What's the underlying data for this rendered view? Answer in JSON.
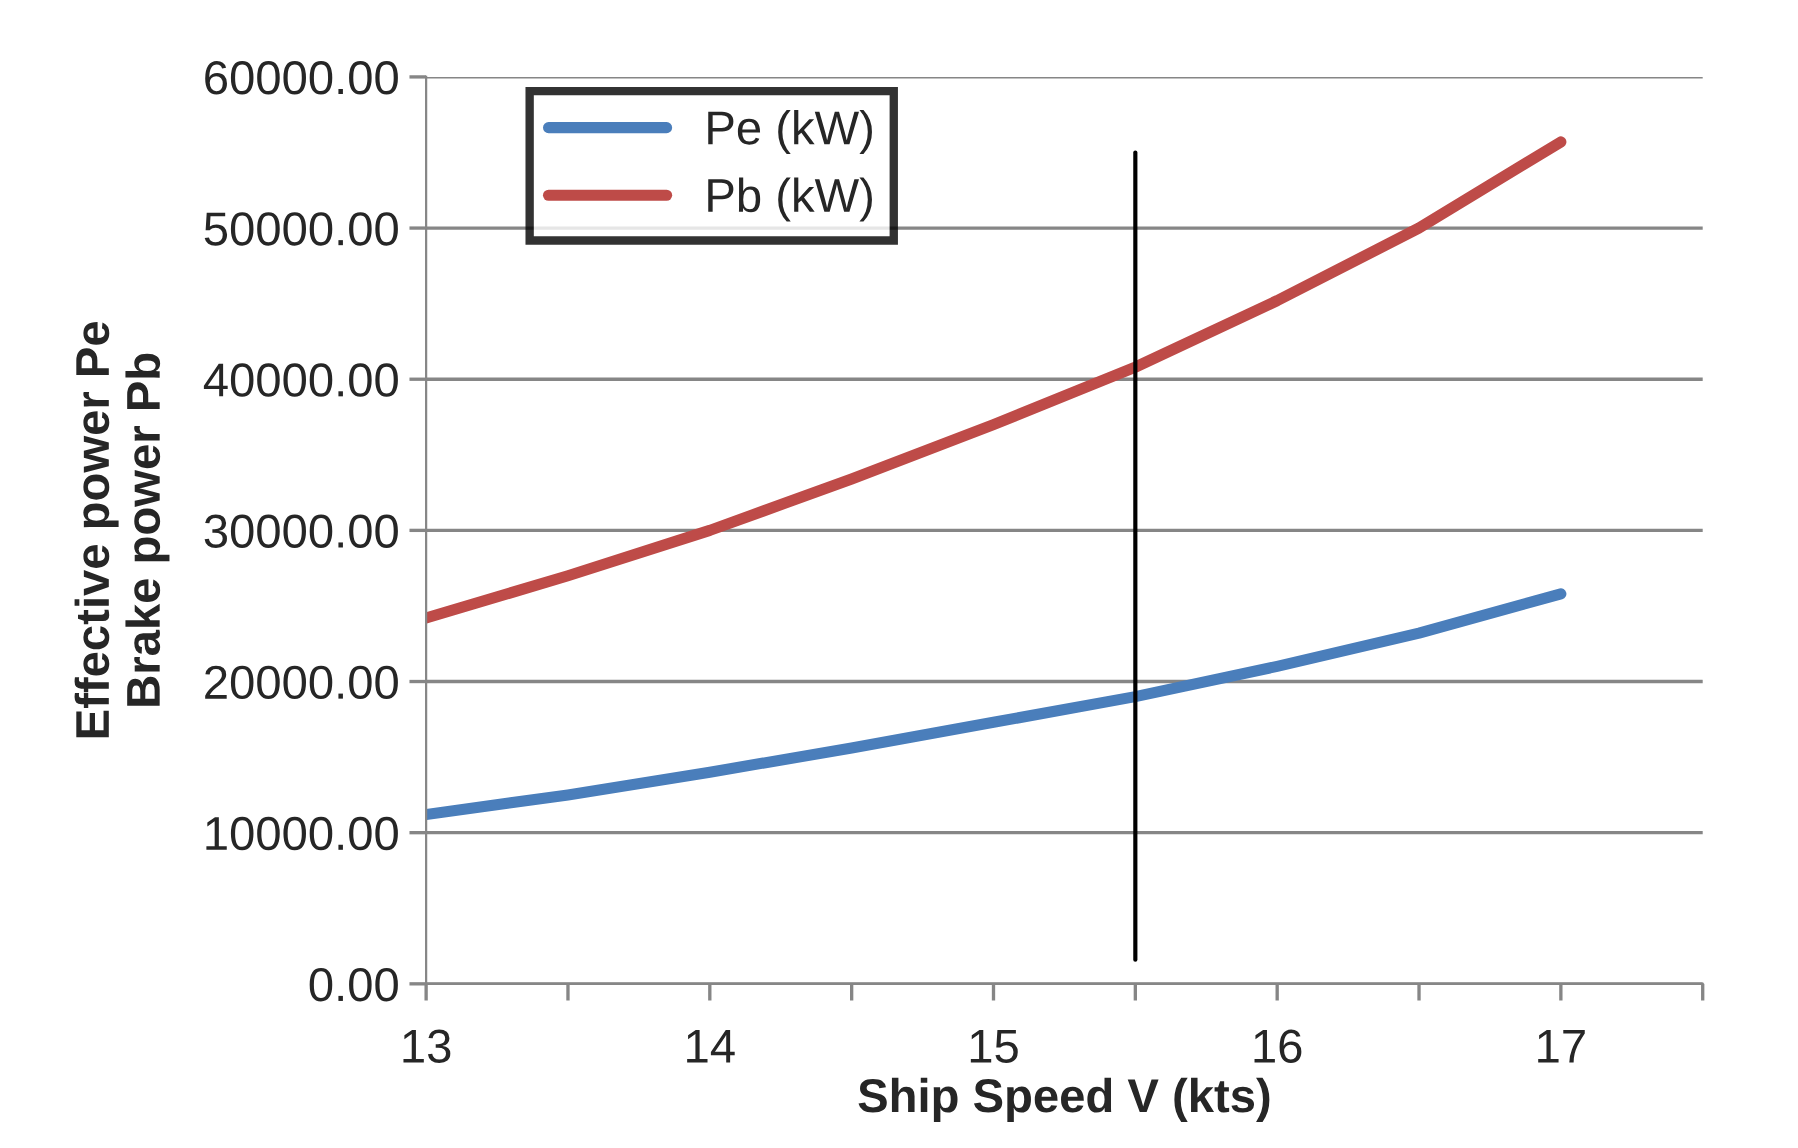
{
  "chart_data": {
    "type": "line",
    "xlabel": "Ship Speed V (kts)",
    "ylabel": "Effective power Pe\nBrake power Pb",
    "x": [
      13,
      13.5,
      14,
      14.5,
      15,
      15.5,
      16,
      16.5,
      17
    ],
    "series": [
      {
        "name": "Pe (kW)",
        "color": "#4a7ebb",
        "values": [
          11200,
          12500,
          14000,
          15600,
          17300,
          19000,
          21000,
          23200,
          25800
        ]
      },
      {
        "name": "Pb (kW)",
        "color": "#be4b48",
        "values": [
          24200,
          27000,
          30000,
          33400,
          37000,
          40800,
          45200,
          50000,
          55700
        ]
      },
      {
        "type": "line",
        "color": "#000000",
        "x": [
          15.5,
          15.5
        ],
        "values": [
          1600,
          55000
        ]
      }
    ],
    "xlim": [
      13,
      17.5
    ],
    "xticks": [
      13,
      {
        "value": 13.5,
        "label": null
      },
      14,
      {
        "value": 14.5,
        "label": null
      },
      15,
      {
        "value": 15.5,
        "label": null
      },
      16,
      {
        "value": 16.5,
        "label": null
      },
      17,
      {
        "value": 17.5,
        "label": null
      }
    ],
    "ylim": [
      0,
      60000
    ],
    "yticks": [
      {
        "value": 0,
        "label": "0.00"
      },
      {
        "value": 10000,
        "label": "10000.00"
      },
      {
        "value": 20000,
        "label": "20000.00"
      },
      {
        "value": 30000,
        "label": "30000.00"
      },
      {
        "value": 40000,
        "label": "40000.00"
      },
      {
        "value": 50000,
        "label": "50000.00"
      },
      {
        "value": 60000,
        "label": "60000.00"
      }
    ],
    "grid": "y",
    "legend": "top left",
    "marker": "none",
    "line_style": "solid"
  }
}
